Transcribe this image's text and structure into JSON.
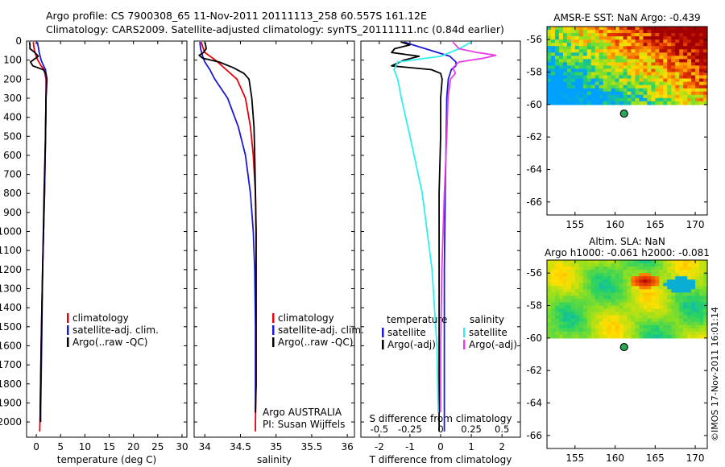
{
  "header": {
    "line1": "Argo profile: CS 7900308_65 11-Nov-2011 20111113_258 60.557S 161.12E",
    "line2": "Climatology: CARS2009. Satellite-adjusted climatology: synTS_20111111.nc (0.84d earlier)"
  },
  "colors": {
    "climatology": "#e8000b",
    "satellite": "#1a1ad6",
    "argo": "#000000",
    "salinity_sat": "#33eeee",
    "salinity_argo": "#e83ee8"
  },
  "chart_data": [
    {
      "type": "line",
      "id": "temperature",
      "xlabel": "temperature (deg C)",
      "xlim": [
        -2,
        31
      ],
      "xticks": [
        0,
        5,
        10,
        15,
        20,
        25,
        30
      ],
      "ylim": [
        2080,
        0
      ],
      "yticks": [
        0,
        100,
        200,
        300,
        400,
        500,
        600,
        700,
        800,
        900,
        1000,
        1100,
        1200,
        1300,
        1400,
        1500,
        1600,
        1700,
        1800,
        1900,
        2000
      ],
      "legend": [
        "climatology",
        "satellite-adj. clim.",
        "Argo(..raw -QC)"
      ],
      "series": [
        {
          "name": "climatology",
          "depth": [
            5,
            30,
            60,
            100,
            130,
            150,
            200,
            300,
            500,
            800,
            1200,
            1600,
            1950,
            2050
          ],
          "values": [
            -0.6,
            -0.5,
            -0.3,
            0.3,
            1.0,
            1.6,
            2.0,
            2.0,
            1.9,
            1.7,
            1.3,
            1.0,
            0.8,
            0.7
          ]
        },
        {
          "name": "satellite-adj. clim.",
          "depth": [
            5,
            30,
            60,
            100,
            130,
            150,
            200,
            300,
            500,
            800,
            1200,
            1600,
            1950,
            2000
          ],
          "values": [
            0.2,
            0.4,
            0.6,
            1.0,
            1.5,
            1.9,
            2.1,
            2.0,
            1.9,
            1.7,
            1.3,
            1.1,
            0.9,
            0.9
          ]
        },
        {
          "name": "Argo(..raw -QC)",
          "depth": [
            5,
            20,
            40,
            60,
            80,
            110,
            130,
            150,
            170,
            200,
            300,
            500,
            800,
            1200,
            1600,
            1950,
            2000
          ],
          "values": [
            -1.4,
            -1.3,
            -1.3,
            -0.3,
            0.4,
            -1.2,
            -0.7,
            1.4,
            2.0,
            2.2,
            2.0,
            1.9,
            1.6,
            1.3,
            1.0,
            0.8,
            0.8
          ]
        }
      ]
    },
    {
      "type": "line",
      "id": "salinity",
      "xlabel": "salinity",
      "xlim": [
        33.85,
        36.1
      ],
      "xticks": [
        34,
        34.5,
        35,
        35.5,
        36
      ],
      "ylim": [
        2080,
        0
      ],
      "legend": [
        "climatology",
        "satellite-adj. clim.",
        "Argo(..raw -QC)"
      ],
      "annotation": [
        "Argo AUSTRALIA",
        "PI: Susan Wijffels"
      ],
      "series": [
        {
          "name": "climatology",
          "depth": [
            5,
            30,
            60,
            100,
            150,
            200,
            300,
            450,
            600,
            800,
            1000,
            1200,
            1500,
            1800,
            2000,
            2050
          ],
          "values": [
            33.95,
            33.97,
            34.0,
            34.15,
            34.3,
            34.45,
            34.57,
            34.64,
            34.68,
            34.71,
            34.72,
            34.72,
            34.72,
            34.72,
            34.71,
            34.71
          ]
        },
        {
          "name": "satellite-adj. clim.",
          "depth": [
            5,
            40,
            80,
            110,
            150,
            200,
            300,
            450,
            600,
            800,
            1000,
            1200,
            1500,
            1800,
            1950
          ],
          "values": [
            33.93,
            33.94,
            33.97,
            34.0,
            34.07,
            34.14,
            34.32,
            34.47,
            34.57,
            34.64,
            34.68,
            34.7,
            34.71,
            34.71,
            34.71
          ]
        },
        {
          "name": "Argo(..raw -QC)",
          "depth": [
            5,
            20,
            40,
            60,
            75,
            90,
            110,
            140,
            170,
            200,
            300,
            450,
            600,
            800,
            1000,
            1200,
            1500,
            1800,
            1950
          ],
          "values": [
            34.0,
            34.01,
            34.02,
            33.98,
            33.92,
            33.97,
            34.2,
            34.4,
            34.55,
            34.62,
            34.66,
            34.69,
            34.7,
            34.71,
            34.72,
            34.72,
            34.72,
            34.72,
            34.71
          ]
        }
      ]
    },
    {
      "type": "line",
      "id": "difference",
      "xlabel": "T difference from climatology",
      "xlabel_top": "S difference from climatology",
      "xlim": [
        -2.6,
        2.6
      ],
      "xticks": [
        -2,
        -1,
        0,
        1,
        2
      ],
      "xticks_top": [
        -0.5,
        -0.25,
        0,
        0.25,
        0.5
      ],
      "ylim": [
        2080,
        0
      ],
      "legend_temperature": {
        "heading": "temperature",
        "items": [
          "satellite",
          "Argo(-adj)"
        ]
      },
      "legend_salinity": {
        "heading": "salinity",
        "items": [
          "satellite",
          "Argo(-adj)"
        ]
      },
      "series": [
        {
          "name": "satellite",
          "quantity": "temperature",
          "depth": [
            5,
            40,
            80,
            110,
            130,
            150,
            200,
            300,
            500,
            800,
            1200,
            1600,
            1950,
            2050
          ],
          "values": [
            -1.2,
            -0.5,
            0.3,
            0.5,
            0.5,
            0.35,
            0.25,
            0.2,
            0.18,
            0.15,
            0.12,
            0.12,
            0.12,
            0.12
          ]
        },
        {
          "name": "Argo(-adj)",
          "quantity": "temperature",
          "depth": [
            5,
            20,
            40,
            60,
            80,
            100,
            130,
            150,
            170,
            200,
            300,
            500,
            800,
            1200,
            1600,
            1950,
            2050
          ],
          "values": [
            -1.3,
            -1.0,
            -1.5,
            -1.6,
            -0.7,
            -1.2,
            -1.6,
            -0.3,
            0.0,
            0.05,
            0.0,
            0.0,
            -0.05,
            -0.05,
            -0.05,
            -0.05,
            -0.05
          ]
        },
        {
          "name": "satellite",
          "quantity": "salinity",
          "depth": [
            5,
            40,
            80,
            110,
            150,
            200,
            300,
            500,
            800,
            1200,
            1600,
            1950
          ],
          "values": [
            0.25,
            0.15,
            0.0,
            -0.35,
            -0.38,
            -0.35,
            -0.32,
            -0.25,
            -0.15,
            -0.07,
            -0.03,
            -0.02
          ]
        },
        {
          "name": "Argo(-adj)",
          "quantity": "salinity",
          "depth": [
            5,
            40,
            60,
            75,
            90,
            110,
            140,
            170,
            200,
            300,
            500,
            800,
            1200,
            1600,
            1950
          ],
          "values": [
            0.1,
            0.15,
            0.3,
            0.45,
            0.35,
            0.15,
            0.1,
            0.12,
            0.08,
            0.06,
            0.05,
            0.03,
            0.01,
            0.0,
            0.0
          ]
        }
      ]
    },
    {
      "type": "heatmap",
      "id": "sst-map",
      "title": "AMSR-E SST: NaN Argo: -0.439",
      "xlim": [
        151.5,
        171.5
      ],
      "ylim": [
        -66.8,
        -55.2
      ],
      "xticks": [
        155,
        160,
        165,
        170
      ],
      "yticks": [
        -56,
        -58,
        -60,
        -62,
        -64,
        -66
      ],
      "data_lat_range": [
        -60,
        -55.2
      ],
      "marker": {
        "lon": 161.12,
        "lat": -60.557
      }
    },
    {
      "type": "heatmap",
      "id": "sla-map",
      "title": "Altim. SLA: NaN",
      "subtitle": "Argo h1000: -0.061 h2000: -0.081",
      "xlim": [
        151.5,
        171.5
      ],
      "ylim": [
        -66.8,
        -55.2
      ],
      "xticks": [
        155,
        160,
        165,
        170
      ],
      "yticks": [
        -56,
        -58,
        -60,
        -62,
        -64,
        -66
      ],
      "data_lat_range": [
        -60,
        -55.2
      ],
      "marker": {
        "lon": 161.12,
        "lat": -60.557
      }
    }
  ],
  "credit": "©IMOS 17-Nov-2011 16:01:14"
}
